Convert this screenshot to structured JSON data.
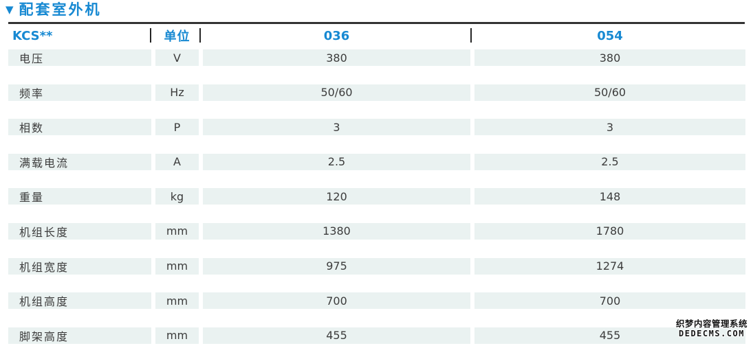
{
  "section": {
    "marker_glyph": "▼",
    "title": "配套室外机"
  },
  "table": {
    "header": {
      "model_label": "KCS**",
      "unit_label": "单位",
      "columns": [
        "036",
        "054"
      ]
    },
    "rows": [
      {
        "label": "电压",
        "unit": "V",
        "v036": "380",
        "v054": "380"
      },
      {
        "label": "频率",
        "unit": "Hz",
        "v036": "50/60",
        "v054": "50/60"
      },
      {
        "label": "相数",
        "unit": "P",
        "v036": "3",
        "v054": "3"
      },
      {
        "label": "满载电流",
        "unit": "A",
        "v036": "2.5",
        "v054": "2.5"
      },
      {
        "label": "重量",
        "unit": "kg",
        "v036": "120",
        "v054": "148"
      },
      {
        "label": "机组长度",
        "unit": "mm",
        "v036": "1380",
        "v054": "1780"
      },
      {
        "label": "机组宽度",
        "unit": "mm",
        "v036": "975",
        "v054": "1274"
      },
      {
        "label": "机组高度",
        "unit": "mm",
        "v036": "700",
        "v054": "700"
      },
      {
        "label": "脚架高度",
        "unit": "mm",
        "v036": "455",
        "v054": "455"
      }
    ]
  },
  "watermark": {
    "line1": "织梦内容管理系统",
    "line2": "DEDECMS.COM"
  },
  "colors": {
    "accent_blue": "#1789d2",
    "row_stripe": "#eaf2f1",
    "rule_dark": "#333333",
    "text_dark": "#3c3c3c"
  }
}
